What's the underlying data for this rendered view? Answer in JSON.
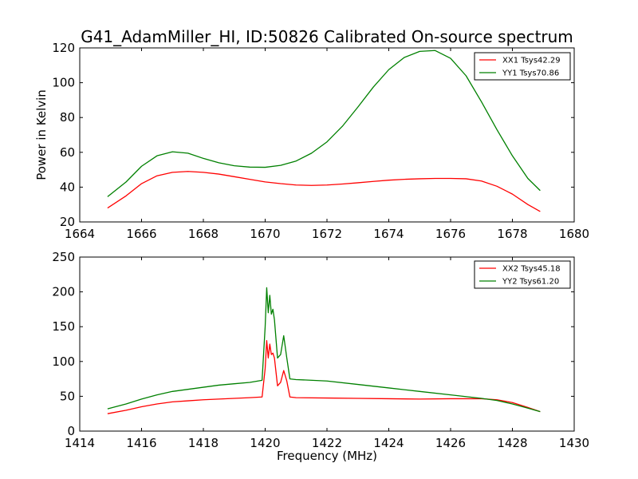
{
  "figure": {
    "title": "G41_AdamMiller_HI, ID:50826 Calibrated On-source spectrum"
  },
  "chart_data": [
    {
      "type": "line",
      "title": "G41_AdamMiller_HI, ID:50826 Calibrated On-source spectrum",
      "xlabel": "",
      "ylabel": "Power in Kelvin",
      "xlim": [
        1664,
        1680
      ],
      "ylim": [
        20,
        120
      ],
      "xticks": [
        1664,
        1666,
        1668,
        1670,
        1672,
        1674,
        1676,
        1678,
        1680
      ],
      "yticks": [
        20,
        40,
        60,
        80,
        100,
        120
      ],
      "grid": false,
      "legend_position": "top-right",
      "series": [
        {
          "name": "XX1 Tsys42.29",
          "color": "#ff0000",
          "x": [
            1664.9,
            1665.5,
            1666.0,
            1666.5,
            1667.0,
            1667.5,
            1668.0,
            1668.5,
            1669.0,
            1669.5,
            1670.0,
            1670.5,
            1671.0,
            1671.5,
            1672.0,
            1672.5,
            1673.0,
            1673.5,
            1674.0,
            1674.5,
            1675.0,
            1675.5,
            1676.0,
            1676.5,
            1677.0,
            1677.5,
            1678.0,
            1678.5,
            1678.9
          ],
          "y": [
            28,
            35,
            42,
            46.5,
            48.5,
            49,
            48.5,
            47.5,
            46,
            44.5,
            43,
            42,
            41.2,
            41,
            41.2,
            41.8,
            42.5,
            43.3,
            44,
            44.5,
            44.8,
            45,
            45,
            44.8,
            43.5,
            40.5,
            36,
            30,
            26
          ]
        },
        {
          "name": "YY1 Tsys70.86",
          "color": "#008000",
          "x": [
            1664.9,
            1665.5,
            1666.0,
            1666.5,
            1667.0,
            1667.5,
            1668.0,
            1668.5,
            1669.0,
            1669.5,
            1670.0,
            1670.5,
            1671.0,
            1671.5,
            1672.0,
            1672.5,
            1673.0,
            1673.5,
            1674.0,
            1674.5,
            1675.0,
            1675.5,
            1676.0,
            1676.5,
            1677.0,
            1677.5,
            1678.0,
            1678.5,
            1678.9
          ],
          "y": [
            34.5,
            43,
            52,
            58,
            60.3,
            59.5,
            56.5,
            54,
            52.3,
            51.5,
            51.4,
            52.5,
            55,
            59.5,
            66,
            75,
            86,
            97.5,
            107.5,
            114.5,
            118,
            118.5,
            114,
            104,
            89,
            73,
            58,
            45,
            38
          ]
        }
      ]
    },
    {
      "type": "line",
      "title": "",
      "xlabel": "Frequency (MHz)",
      "ylabel": "",
      "xlim": [
        1414,
        1430
      ],
      "ylim": [
        0,
        250
      ],
      "xticks": [
        1414,
        1416,
        1418,
        1420,
        1422,
        1424,
        1426,
        1428,
        1430
      ],
      "yticks": [
        0,
        50,
        100,
        150,
        200,
        250
      ],
      "grid": false,
      "legend_position": "top-right",
      "series": [
        {
          "name": "XX2 Tsys45.18",
          "color": "#ff0000",
          "x": [
            1414.9,
            1415.5,
            1416.0,
            1416.5,
            1417.0,
            1417.5,
            1418.0,
            1418.5,
            1419.0,
            1419.5,
            1419.9,
            1420.0,
            1420.05,
            1420.1,
            1420.15,
            1420.2,
            1420.25,
            1420.3,
            1420.4,
            1420.5,
            1420.6,
            1420.7,
            1420.8,
            1421.0,
            1422.0,
            1423.0,
            1424.0,
            1425.0,
            1426.0,
            1427.0,
            1427.5,
            1428.0,
            1428.5,
            1428.9
          ],
          "y": [
            25,
            30,
            35,
            39,
            42,
            43.5,
            45,
            46,
            47,
            48,
            49,
            90,
            130,
            105,
            125,
            110,
            112,
            105,
            65,
            70,
            87,
            72,
            49,
            48,
            47.5,
            47,
            46.5,
            46,
            46.5,
            46.5,
            45,
            41,
            34,
            28
          ]
        },
        {
          "name": "YY2 Tsys61.20",
          "color": "#008000",
          "x": [
            1414.9,
            1415.5,
            1416.0,
            1416.5,
            1417.0,
            1417.5,
            1418.0,
            1418.5,
            1419.0,
            1419.5,
            1419.9,
            1420.0,
            1420.05,
            1420.1,
            1420.15,
            1420.2,
            1420.25,
            1420.3,
            1420.4,
            1420.5,
            1420.6,
            1420.7,
            1420.8,
            1421.0,
            1422.0,
            1423.0,
            1424.0,
            1425.0,
            1426.0,
            1427.0,
            1427.5,
            1428.0,
            1428.5,
            1428.9
          ],
          "y": [
            32,
            39,
            46,
            52,
            57,
            60,
            63,
            66,
            68,
            70,
            73,
            150,
            206,
            170,
            195,
            168,
            175,
            160,
            105,
            110,
            137,
            105,
            75,
            74,
            72,
            67,
            62,
            57,
            52,
            47,
            44,
            39,
            33,
            28
          ]
        }
      ]
    }
  ]
}
